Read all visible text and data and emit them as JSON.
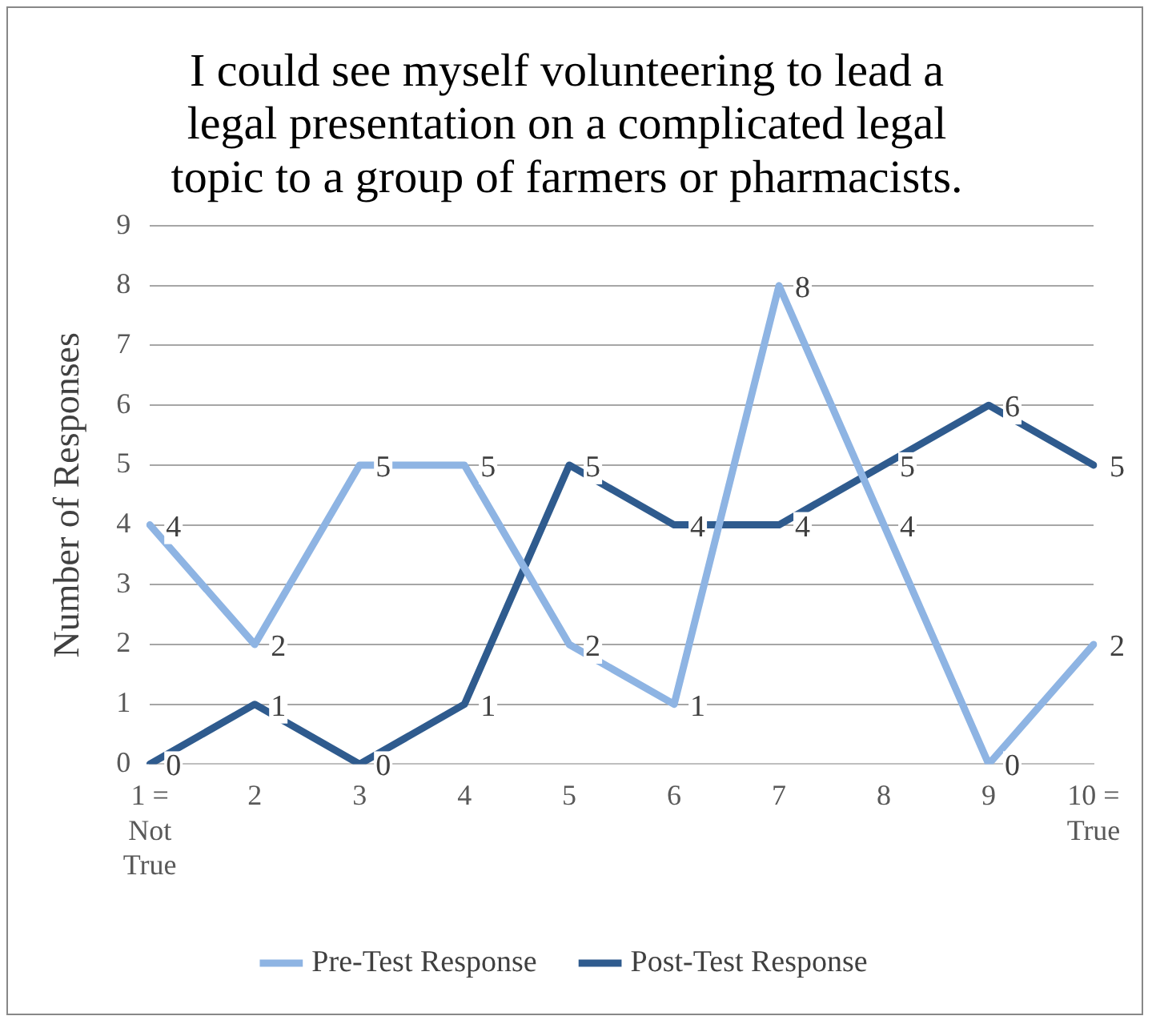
{
  "chart_data": {
    "type": "line",
    "title": "I could see myself volunteering to lead a legal presentation on a complicated legal topic to a group of farmers or pharmacists.",
    "ylabel": "Number of Responses",
    "categories": [
      "1 = Not True",
      "2",
      "3",
      "4",
      "5",
      "6",
      "7",
      "8",
      "9",
      "10 = True"
    ],
    "series": [
      {
        "name": "Pre-Test Response",
        "color": "#8eb4e3",
        "values": [
          4,
          2,
          5,
          5,
          2,
          1,
          8,
          4,
          0,
          2
        ]
      },
      {
        "name": "Post-Test Response",
        "color": "#2f5b8e",
        "values": [
          0,
          1,
          0,
          1,
          5,
          4,
          4,
          5,
          6,
          5
        ]
      }
    ],
    "ylim": [
      0,
      9
    ],
    "yticks": [
      0,
      1,
      2,
      3,
      4,
      5,
      6,
      7,
      8,
      9
    ],
    "grid": "y",
    "legend": "bottom",
    "marker": "none",
    "line_style": "solid",
    "data_labels": true
  }
}
